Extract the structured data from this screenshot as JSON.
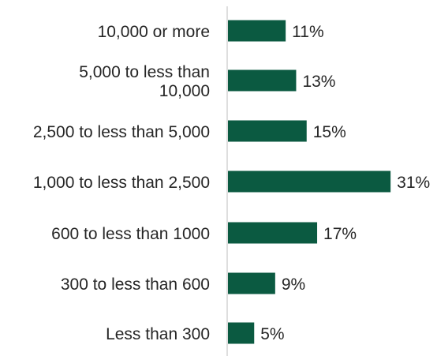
{
  "colors": {
    "bar": "#0b5a41",
    "axis": "#d4d4d4",
    "text": "#262626",
    "background": "#ffffff"
  },
  "chart_data": {
    "type": "bar",
    "orientation": "horizontal",
    "categories": [
      "10,000 or more",
      "5,000 to less than 10,000",
      "2,500 to less than 5,000",
      "1,000 to less than 2,500",
      "600 to less than 1000",
      "300 to less than 600",
      "Less than 300"
    ],
    "category_lines": [
      [
        "10,000 or more"
      ],
      [
        "5,000 to less than",
        "10,000"
      ],
      [
        "2,500 to less than 5,000"
      ],
      [
        "1,000 to less than 2,500"
      ],
      [
        "600 to less than 1000"
      ],
      [
        "300 to less than 600"
      ],
      [
        "Less than 300"
      ]
    ],
    "values": [
      11,
      13,
      15,
      31,
      17,
      9,
      5
    ],
    "value_labels": [
      "11%",
      "13%",
      "15%",
      "31%",
      "17%",
      "9%",
      "5%"
    ],
    "unit": "%",
    "xlim": [
      0,
      32
    ],
    "grid": false,
    "legend": "none",
    "title": "",
    "xlabel": "",
    "ylabel": ""
  }
}
